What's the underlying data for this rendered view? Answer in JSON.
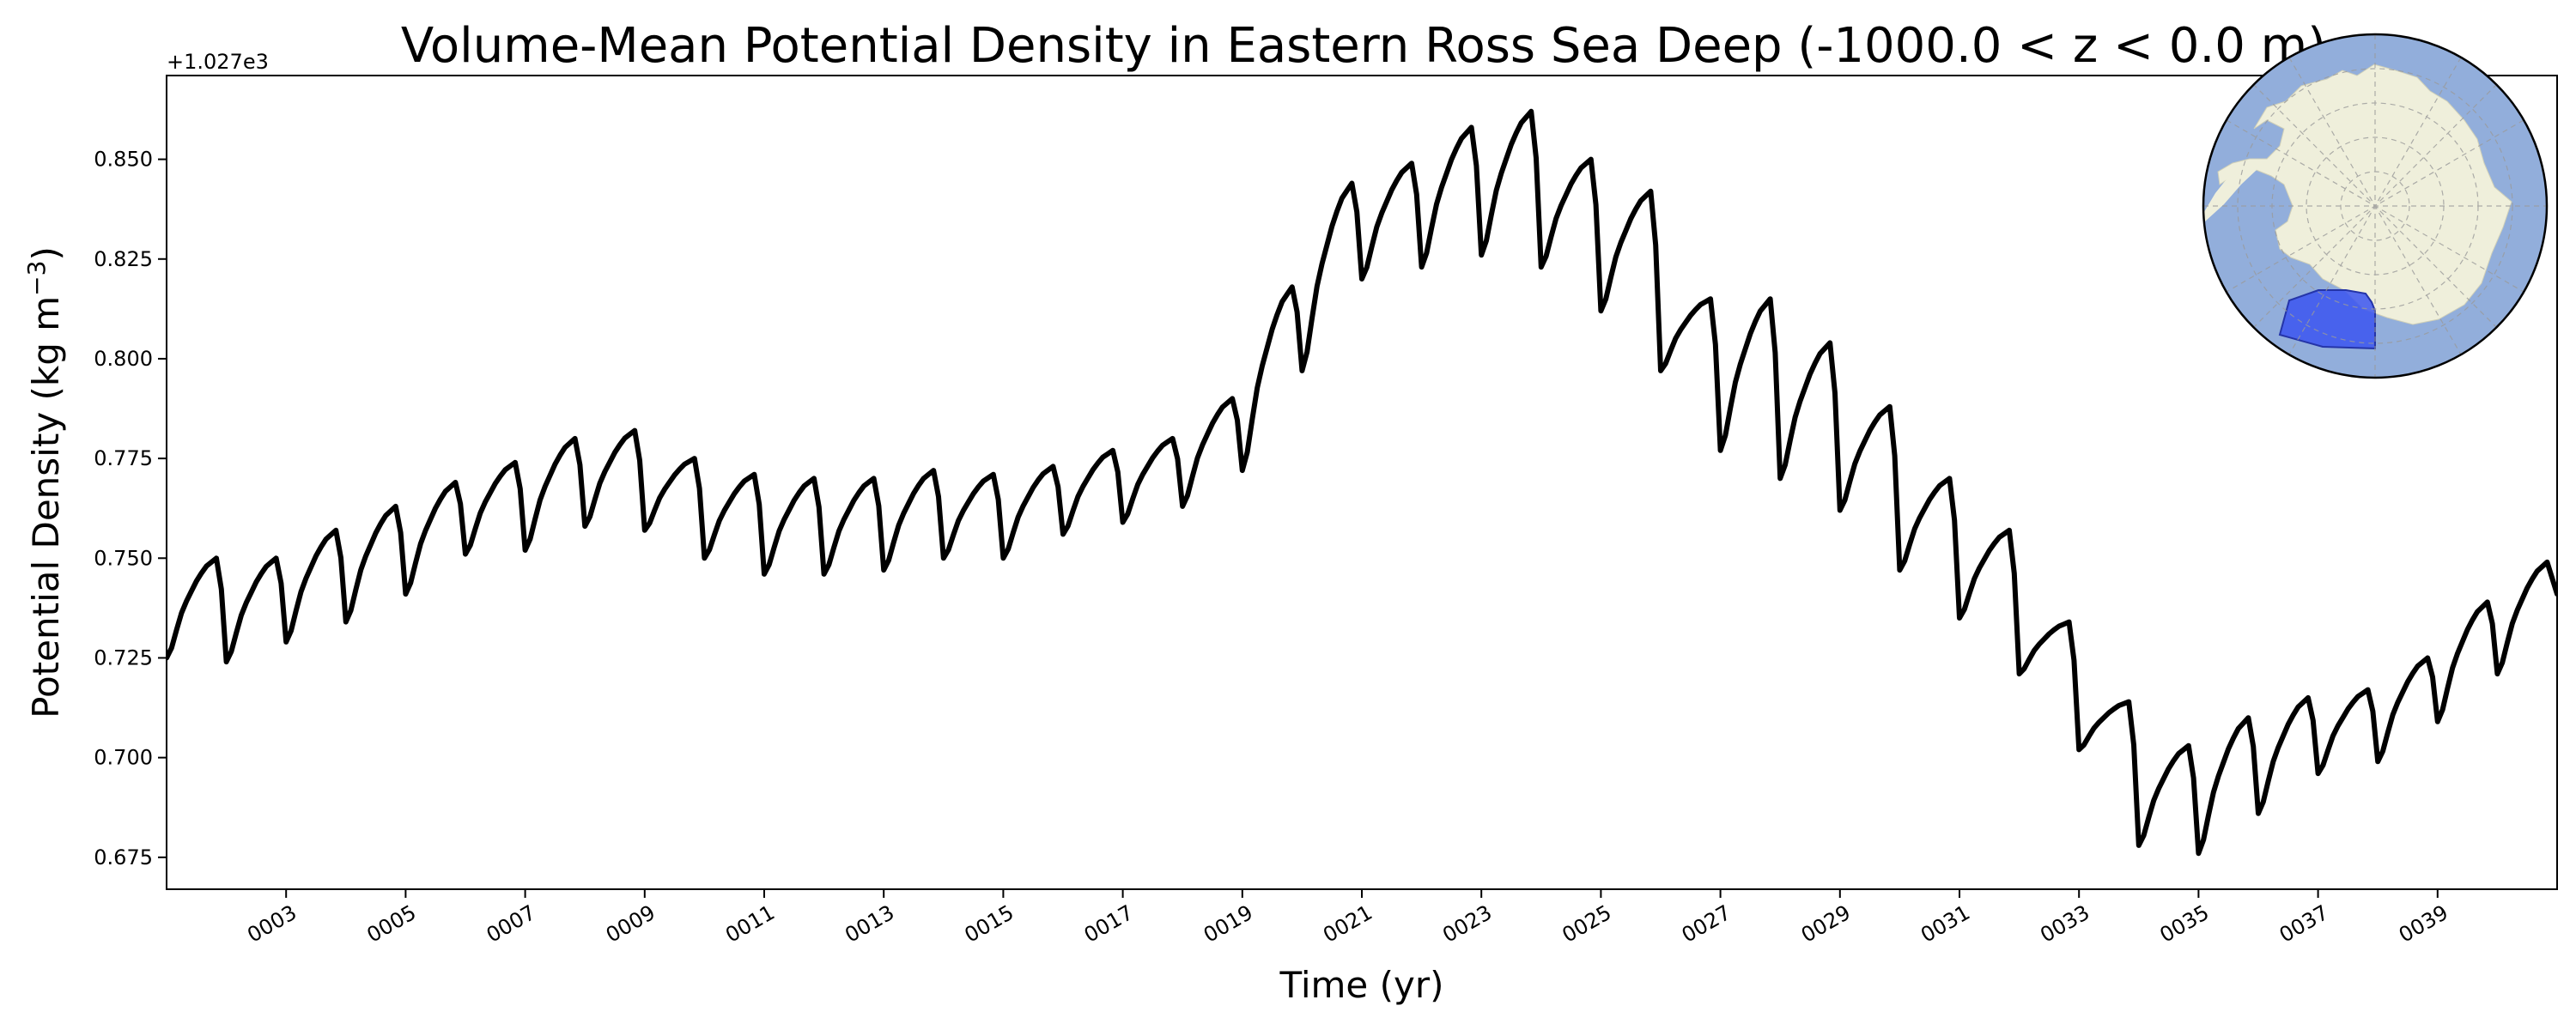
{
  "chart_data": {
    "type": "line",
    "title": "Volume-Mean Potential Density in Eastern Ross Sea Deep (-1000.0 < z < 0.0 m)",
    "xlabel": "Time (yr)",
    "ylabel_main": "Potential Density (kg m",
    "ylabel_sup": "−3",
    "ylabel_close": ")",
    "offset_label": "+1.027e3",
    "xlim": [
      1.0,
      41.0
    ],
    "ylim": [
      0.667,
      0.871
    ],
    "x_ticks": [
      3,
      5,
      7,
      9,
      11,
      13,
      15,
      17,
      19,
      21,
      23,
      25,
      27,
      29,
      31,
      33,
      35,
      37,
      39
    ],
    "x_tick_labels": [
      "0003",
      "0005",
      "0007",
      "0009",
      "0011",
      "0013",
      "0015",
      "0017",
      "0019",
      "0021",
      "0023",
      "0025",
      "0027",
      "0029",
      "0031",
      "0033",
      "0035",
      "0037",
      "0039"
    ],
    "y_ticks": [
      0.675,
      0.7,
      0.725,
      0.75,
      0.775,
      0.8,
      0.825,
      0.85
    ],
    "y_tick_labels": [
      "0.675",
      "0.700",
      "0.725",
      "0.750",
      "0.775",
      "0.800",
      "0.825",
      "0.850"
    ],
    "series": [
      {
        "name": "Eastern Ross Sea Deep",
        "color": "#000000",
        "annual_peaks": [
          0.75,
          0.75,
          0.757,
          0.763,
          0.769,
          0.774,
          0.78,
          0.782,
          0.775,
          0.771,
          0.77,
          0.77,
          0.772,
          0.771,
          0.773,
          0.777,
          0.78,
          0.79,
          0.818,
          0.844,
          0.849,
          0.858,
          0.862,
          0.85,
          0.842,
          0.815,
          0.815,
          0.804,
          0.788,
          0.77,
          0.757,
          0.734,
          0.714,
          0.703,
          0.71,
          0.715,
          0.717,
          0.725,
          0.739,
          0.749
        ],
        "annual_troughs": [
          0.724,
          0.724,
          0.729,
          0.734,
          0.741,
          0.751,
          0.752,
          0.758,
          0.757,
          0.75,
          0.746,
          0.746,
          0.747,
          0.75,
          0.75,
          0.756,
          0.759,
          0.763,
          0.772,
          0.797,
          0.82,
          0.823,
          0.826,
          0.823,
          0.812,
          0.797,
          0.777,
          0.77,
          0.762,
          0.747,
          0.735,
          0.721,
          0.702,
          0.678,
          0.676,
          0.686,
          0.696,
          0.699,
          0.709,
          0.721
        ],
        "end_value": 0.741
      }
    ]
  },
  "inset_map": {
    "name": "Antarctica polar stereographic map",
    "ocean_color": "#92aedb",
    "land_color": "#efefdb",
    "region_color": "#3b55f0"
  }
}
